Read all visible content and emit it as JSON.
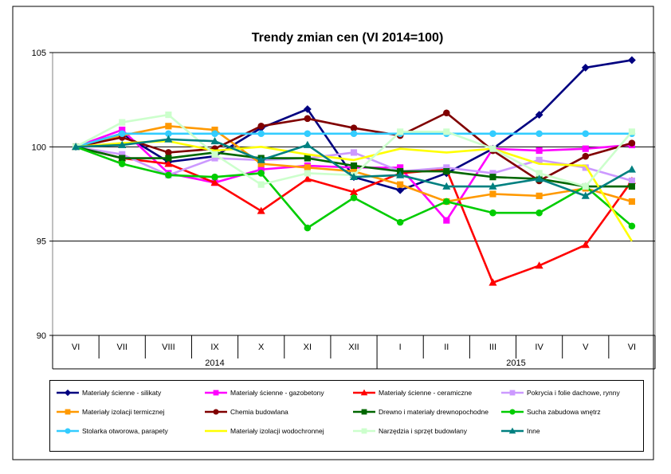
{
  "chart_data": {
    "type": "line",
    "title": "Trendy zmian cen (VI 2014=100)",
    "xlabel": "",
    "ylabel": "",
    "ylim": [
      90,
      105
    ],
    "yticks": [
      90,
      95,
      100,
      105
    ],
    "grid": true,
    "legend_position": "bottom",
    "categories": [
      "VI",
      "VII",
      "VIII",
      "IX",
      "X",
      "XI",
      "XII",
      "I",
      "II",
      "III",
      "IV",
      "V",
      "VI"
    ],
    "year_groups": [
      {
        "label": "2014",
        "span": 7
      },
      {
        "label": "2015",
        "span": 6
      }
    ],
    "series": [
      {
        "name": "Materiały ścienne - silikaty",
        "color": "#000080",
        "marker": "diamond",
        "values": [
          100,
          100.7,
          99.2,
          99.5,
          101.0,
          102.0,
          98.4,
          97.7,
          98.6,
          99.9,
          101.7,
          104.2,
          104.6
        ]
      },
      {
        "name": "Materiały ścienne - gazobetony",
        "color": "#ff00ff",
        "marker": "square",
        "values": [
          100,
          100.9,
          98.6,
          98.1,
          98.8,
          99.0,
          98.9,
          98.9,
          96.1,
          99.9,
          99.8,
          99.9,
          100.1
        ]
      },
      {
        "name": "Materiały ścienne - ceramiczne",
        "color": "#ff0000",
        "marker": "triangle",
        "values": [
          100,
          99.4,
          99.1,
          98.1,
          96.6,
          98.3,
          97.6,
          98.6,
          98.8,
          92.8,
          93.7,
          94.8,
          98.2
        ]
      },
      {
        "name": "Pokrycia i folie dachowe, rynny",
        "color": "#cc99ff",
        "marker": "square",
        "values": [
          100,
          99.6,
          98.5,
          99.4,
          99.3,
          99.4,
          99.7,
          98.7,
          98.9,
          98.6,
          99.3,
          98.9,
          98.2
        ]
      },
      {
        "name": "Materiały izolacji termicznej",
        "color": "#ff9900",
        "marker": "square",
        "values": [
          100,
          100.6,
          101.1,
          100.9,
          99.1,
          98.9,
          98.7,
          98.0,
          97.1,
          97.5,
          97.4,
          97.8,
          97.1
        ]
      },
      {
        "name": "Chemia budowlana",
        "color": "#800000",
        "marker": "circle",
        "values": [
          100,
          100.5,
          99.7,
          99.9,
          101.1,
          101.5,
          101.0,
          100.6,
          101.8,
          99.8,
          98.2,
          99.5,
          100.2
        ]
      },
      {
        "name": "Drewno i materiały drewnopochodne",
        "color": "#006600",
        "marker": "square",
        "values": [
          100,
          99.4,
          99.4,
          99.7,
          99.4,
          99.4,
          99.0,
          98.7,
          98.7,
          98.4,
          98.3,
          97.9,
          97.9
        ]
      },
      {
        "name": "Sucha zabudowa wnętrz",
        "color": "#00cc00",
        "marker": "circle",
        "values": [
          100,
          99.1,
          98.5,
          98.4,
          98.6,
          95.7,
          97.3,
          96.0,
          97.1,
          96.5,
          96.5,
          97.9,
          95.8
        ]
      },
      {
        "name": "Stolarka otworowa, parapety",
        "color": "#33ccff",
        "marker": "circle",
        "values": [
          100,
          100.7,
          100.7,
          100.7,
          100.7,
          100.7,
          100.7,
          100.7,
          100.7,
          100.7,
          100.7,
          100.7,
          100.7
        ]
      },
      {
        "name": "Materiały izolacji wodochronnej",
        "color": "#ffff00",
        "marker": "none",
        "values": [
          100,
          100.2,
          100.3,
          99.8,
          100.0,
          99.6,
          99.3,
          99.9,
          99.7,
          99.9,
          99.1,
          99.0,
          95.0
        ]
      },
      {
        "name": "Narzędzia i sprzęt budowlany",
        "color": "#ccffcc",
        "marker": "square",
        "values": [
          100,
          101.3,
          101.7,
          99.6,
          98.0,
          98.6,
          98.5,
          100.8,
          100.8,
          99.9,
          98.6,
          97.9,
          100.8
        ]
      },
      {
        "name": "Inne",
        "color": "#008080",
        "marker": "triangle",
        "values": [
          100,
          100.1,
          100.4,
          100.3,
          99.3,
          100.1,
          98.4,
          98.5,
          97.9,
          97.9,
          98.3,
          97.4,
          98.8
        ]
      }
    ]
  }
}
